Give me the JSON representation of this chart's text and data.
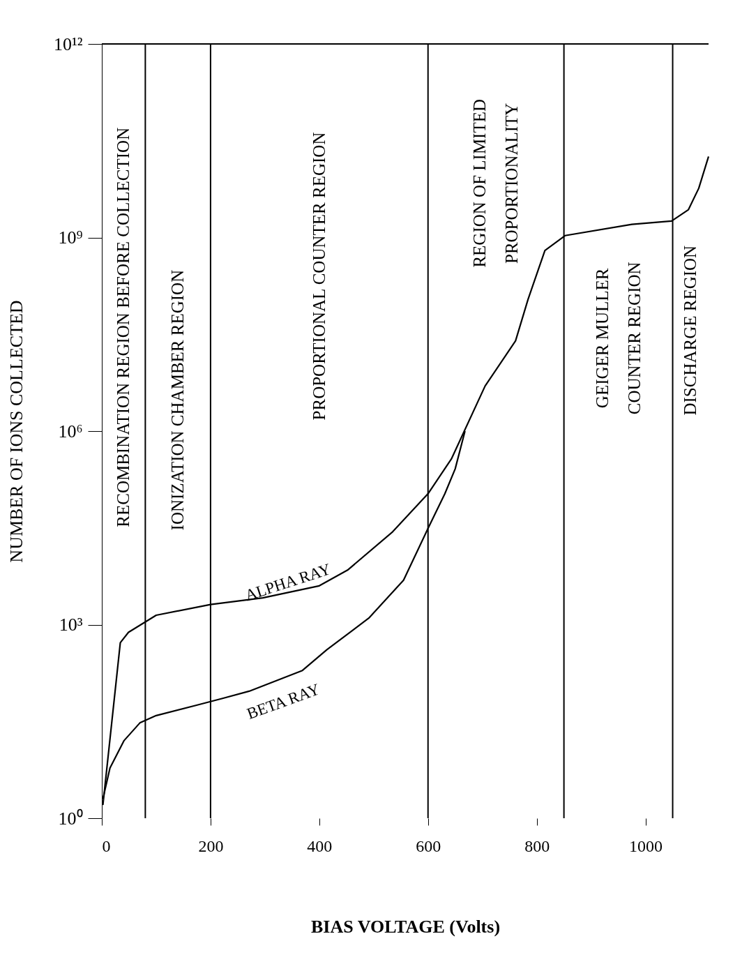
{
  "chart_data": {
    "type": "line",
    "xlabel": "BIAS VOLTAGE (Volts)",
    "ylabel": "NUMBER OF IONS COLLECTED",
    "log": "y",
    "xlim": [
      0,
      1116
    ],
    "xticks": [
      0,
      200,
      400,
      600,
      800,
      1000
    ],
    "ylim": [
      1,
      1000000000000
    ],
    "yticks": [
      {
        "value": 1,
        "label": "10⁰"
      },
      {
        "value": 1000,
        "label": "10³"
      },
      {
        "value": 1000000,
        "label": "10⁶"
      },
      {
        "value": 1000000000,
        "label": "10⁹"
      },
      {
        "value": 1000000000000,
        "label": "10¹²"
      }
    ],
    "grid": false,
    "marker": "none",
    "line_style": "solid",
    "series": [
      {
        "name": "ALPHA RAY",
        "color": "#000000",
        "x": [
          2,
          34,
          49,
          100,
          200,
          296,
          400,
          452,
          535,
          600,
          643,
          705,
          761,
          784,
          815,
          852,
          975,
          1048,
          1079,
          1098,
          1116
        ],
        "values": [
          1.6,
          525,
          760,
          1400,
          2050,
          2600,
          4000,
          7000,
          27500,
          107000,
          370000,
          5000000,
          25000000,
          110000000,
          630000000,
          1070000000,
          1600000000,
          1800000000,
          2700000000,
          5800000000,
          18000000000
        ]
      },
      {
        "name": "BETA RAY",
        "color": "#000000",
        "x": [
          2,
          15,
          41,
          70,
          100,
          173,
          222,
          271,
          369,
          414,
          491,
          555,
          600,
          631,
          650,
          668
        ],
        "values": [
          2,
          6,
          16,
          30,
          39,
          56,
          72,
          93,
          195,
          410,
          1260,
          4900,
          31000,
          107000,
          260000,
          1000000
        ]
      }
    ],
    "ref_lines": [
      {
        "axis": "x",
        "value": 80
      },
      {
        "axis": "x",
        "value": 200
      },
      {
        "axis": "x",
        "value": 600
      },
      {
        "axis": "x",
        "value": 850
      },
      {
        "axis": "x",
        "value": 1050
      }
    ],
    "annotations": [
      "RECOMBINATION REGION BEFORE COLLECTION",
      "IONIZATION CHAMBER REGION",
      "PROPORTIONAL COUNTER REGION",
      "REGION OF LIMITED PROPORTIONALITY",
      "GEIGER MULLER COUNTER REGION",
      "DISCHARGE REGION"
    ]
  }
}
